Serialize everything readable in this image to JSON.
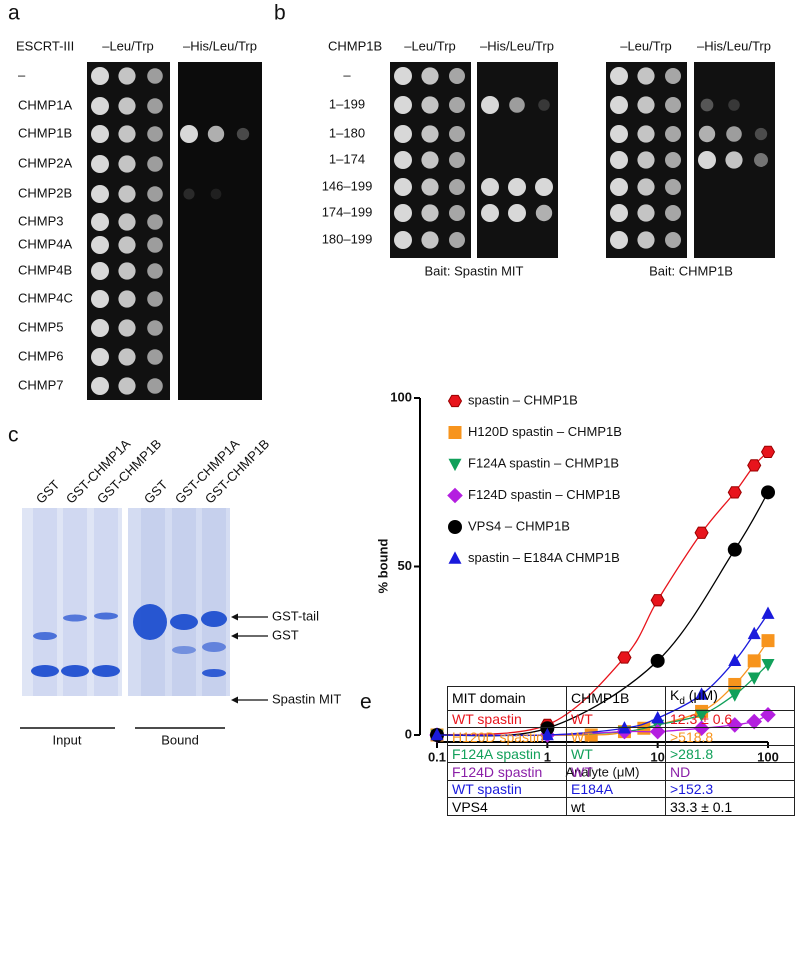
{
  "panel_a": {
    "label": "a",
    "row_header": "ESCRT-III",
    "columns": [
      "–Leu/Trp",
      "–His/Leu/Trp"
    ],
    "rows": [
      "–",
      "CHMP1A",
      "CHMP1B",
      "CHMP2A",
      "CHMP2B",
      "CHMP3",
      "CHMP4A",
      "CHMP4B",
      "CHMP4C",
      "CHMP5",
      "CHMP6",
      "CHMP7"
    ]
  },
  "panel_b": {
    "label": "b",
    "row_header": "CHMP1B",
    "columns": [
      "–Leu/Trp",
      "–His/Leu/Trp",
      "–Leu/Trp",
      "–His/Leu/Trp"
    ],
    "rows": [
      "–",
      "1–199",
      "1–180",
      "1–174",
      "146–199",
      "174–199",
      "180–199"
    ],
    "captions": [
      "Bait: Spastin MIT",
      "Bait: CHMP1B"
    ]
  },
  "panel_c": {
    "label": "c",
    "lanes": [
      "GST",
      "GST-CHMP1A",
      "GST-CHMP1B",
      "GST",
      "GST-CHMP1A",
      "GST-CHMP1B"
    ],
    "bands": [
      "GST-tail",
      "GST",
      "Spastin MIT"
    ],
    "groups": [
      "Input",
      "Bound"
    ]
  },
  "chart_data": {
    "type": "scatter",
    "x_label": "Analyte (μM)",
    "y_label": "% bound",
    "xscale": "log",
    "xlim": [
      0.1,
      100
    ],
    "xticks": [
      0.1,
      1,
      10,
      100
    ],
    "ylim": [
      0,
      100
    ],
    "yticks": [
      0,
      50,
      100
    ],
    "grid": false,
    "legend": "top-left",
    "series": [
      {
        "name": "spastin – CHMP1B",
        "color": "#e8141c",
        "marker": "hexagon",
        "x": [
          0.1,
          1,
          5,
          10,
          25,
          50,
          75,
          100
        ],
        "values": [
          0,
          3,
          23,
          40,
          60,
          72,
          80,
          84
        ]
      },
      {
        "name": "H120D spastin – CHMP1B",
        "color": "#f7941d",
        "marker": "square",
        "x": [
          0.1,
          2.5,
          5,
          7.5,
          25,
          50,
          75,
          100
        ],
        "values": [
          0,
          0,
          1,
          2,
          7,
          15,
          22,
          28
        ]
      },
      {
        "name": "F124A spastin – CHMP1B",
        "color": "#11a05a",
        "marker": "triangle-down",
        "x": [
          0.1,
          1,
          5,
          10,
          25,
          50,
          75,
          100
        ],
        "values": [
          0,
          0,
          1,
          3,
          6,
          12,
          17,
          21
        ]
      },
      {
        "name": "F124D spastin – CHMP1B",
        "color": "#b41fe0",
        "marker": "diamond",
        "x": [
          0.1,
          1,
          5,
          10,
          25,
          50,
          75,
          100
        ],
        "values": [
          0,
          0,
          1,
          1,
          2,
          3,
          4,
          6
        ]
      },
      {
        "name": "VPS4 – CHMP1B",
        "color": "#000000",
        "marker": "circle",
        "x": [
          0.1,
          1,
          10,
          50,
          100
        ],
        "values": [
          0,
          2,
          22,
          55,
          72
        ]
      },
      {
        "name": "spastin – E184A CHMP1B",
        "color": "#1a1adc",
        "marker": "triangle-up",
        "x": [
          0.1,
          1,
          5,
          10,
          25,
          50,
          75,
          100
        ],
        "values": [
          0,
          0,
          2,
          5,
          12,
          22,
          30,
          36
        ]
      }
    ]
  },
  "panel_e": {
    "label": "e",
    "table": {
      "header": [
        "MIT domain",
        "CHMP1B",
        {
          "symbol": "K",
          "subscript": "d",
          "unit": "(μM)"
        }
      ],
      "rows": [
        {
          "color": "#e8141c",
          "cells": [
            "WT spastin",
            "WT",
            "12.3 ± 0.6"
          ]
        },
        {
          "color": "#f7941d",
          "cells": [
            "H120D spastin",
            "WT",
            ">518.8"
          ]
        },
        {
          "color": "#11a05a",
          "cells": [
            "F124A spastin",
            "WT",
            ">281.8"
          ]
        },
        {
          "color": "#8a1fa8",
          "cells": [
            "F124D spastin",
            "WT",
            "ND"
          ]
        },
        {
          "color": "#1a1adc",
          "cells": [
            "WT spastin",
            "E184A",
            ">152.3"
          ]
        },
        {
          "color": "#000000",
          "cells": [
            "VPS4",
            "wt",
            "33.3 ± 0.1"
          ]
        }
      ]
    }
  }
}
